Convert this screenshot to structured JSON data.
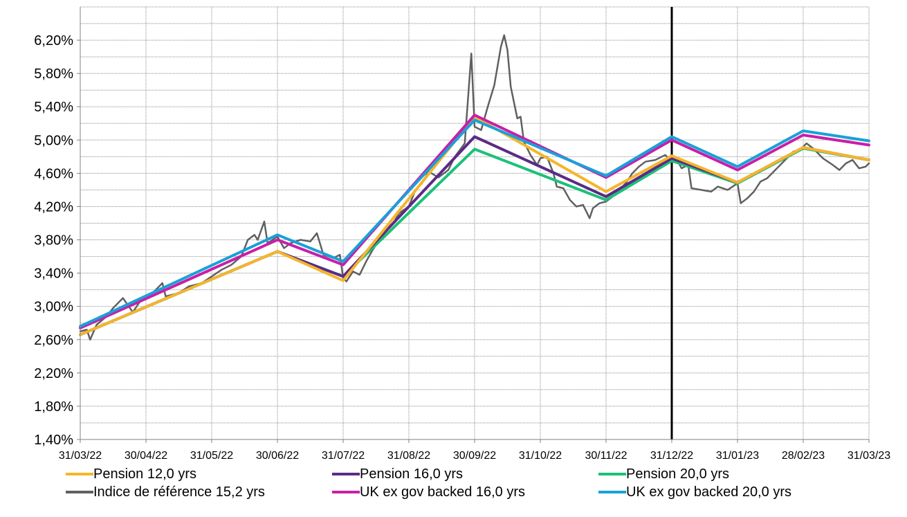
{
  "chart_data": {
    "type": "line",
    "xlabel": "",
    "ylabel": "",
    "y_axis": {
      "min": 1.4,
      "max": 6.6,
      "ticks": [
        "1,40%",
        "1,80%",
        "2,20%",
        "2,60%",
        "3,00%",
        "3,40%",
        "3,80%",
        "4,20%",
        "4,60%",
        "5,00%",
        "5,40%",
        "5,80%",
        "6,20%"
      ],
      "tick_values": [
        1.4,
        1.8,
        2.2,
        2.6,
        3.0,
        3.4,
        3.8,
        4.2,
        4.6,
        5.0,
        5.4,
        5.8,
        6.2
      ]
    },
    "x_axis": {
      "categories": [
        "31/03/22",
        "30/04/22",
        "31/05/22",
        "30/06/22",
        "31/07/22",
        "31/08/22",
        "30/09/22",
        "31/10/22",
        "30/11/22",
        "31/12/22",
        "31/01/23",
        "28/02/23",
        "31/03/23"
      ]
    },
    "grid": true,
    "vertical_marker_at": "31/12/22",
    "series": [
      {
        "name": "Pension 12,0 yrs",
        "color": "#F5B52B",
        "points": [
          [
            0,
            2.66
          ],
          [
            3,
            3.66
          ],
          [
            4,
            3.31
          ],
          [
            6,
            5.28
          ],
          [
            8,
            4.38
          ],
          [
            9,
            4.81
          ],
          [
            10,
            4.49
          ],
          [
            11,
            4.91
          ],
          [
            12,
            4.76
          ]
        ]
      },
      {
        "name": "Pension 16,0 yrs",
        "color": "#5B2A86",
        "points": [
          [
            0,
            2.66
          ],
          [
            3,
            3.66
          ],
          [
            4,
            3.36
          ],
          [
            6,
            5.04
          ],
          [
            8,
            4.32
          ],
          [
            9,
            4.78
          ],
          [
            10,
            4.49
          ],
          [
            11,
            4.91
          ],
          [
            12,
            4.76
          ]
        ]
      },
      {
        "name": "Pension 20,0 yrs",
        "color": "#1DC07A",
        "points": [
          [
            0,
            2.66
          ],
          [
            3,
            3.66
          ],
          [
            4,
            3.36
          ],
          [
            6,
            4.89
          ],
          [
            8,
            4.28
          ],
          [
            9,
            4.75
          ],
          [
            10,
            4.48
          ],
          [
            11,
            4.9
          ],
          [
            12,
            4.76
          ]
        ]
      },
      {
        "name": "Indice de référence 15,2 yrs",
        "color": "#5F6062",
        "points": [
          [
            0.0,
            2.7
          ],
          [
            0.1,
            2.72
          ],
          [
            0.15,
            2.6
          ],
          [
            0.25,
            2.78
          ],
          [
            0.4,
            2.88
          ],
          [
            0.5,
            2.98
          ],
          [
            0.65,
            3.1
          ],
          [
            0.8,
            2.93
          ],
          [
            0.9,
            3.05
          ],
          [
            1.0,
            3.12
          ],
          [
            1.1,
            3.16
          ],
          [
            1.25,
            3.28
          ],
          [
            1.3,
            3.12
          ],
          [
            1.5,
            3.16
          ],
          [
            1.65,
            3.24
          ],
          [
            1.85,
            3.28
          ],
          [
            2.0,
            3.36
          ],
          [
            2.15,
            3.44
          ],
          [
            2.3,
            3.5
          ],
          [
            2.45,
            3.6
          ],
          [
            2.55,
            3.8
          ],
          [
            2.65,
            3.86
          ],
          [
            2.7,
            3.8
          ],
          [
            2.8,
            4.02
          ],
          [
            2.85,
            3.76
          ],
          [
            3.0,
            3.84
          ],
          [
            3.1,
            3.7
          ],
          [
            3.2,
            3.76
          ],
          [
            3.35,
            3.8
          ],
          [
            3.5,
            3.78
          ],
          [
            3.6,
            3.88
          ],
          [
            3.7,
            3.62
          ],
          [
            3.85,
            3.58
          ],
          [
            3.95,
            3.62
          ],
          [
            4.0,
            3.34
          ],
          [
            4.05,
            3.3
          ],
          [
            4.15,
            3.42
          ],
          [
            4.25,
            3.38
          ],
          [
            4.35,
            3.54
          ],
          [
            4.45,
            3.68
          ],
          [
            4.55,
            3.8
          ],
          [
            4.65,
            3.9
          ],
          [
            4.75,
            3.98
          ],
          [
            4.85,
            4.12
          ],
          [
            5.0,
            4.2
          ],
          [
            5.1,
            4.4
          ],
          [
            5.2,
            4.48
          ],
          [
            5.3,
            4.62
          ],
          [
            5.45,
            4.55
          ],
          [
            5.6,
            4.64
          ],
          [
            5.7,
            4.8
          ],
          [
            5.85,
            4.96
          ],
          [
            5.95,
            6.04
          ],
          [
            6.0,
            5.16
          ],
          [
            6.1,
            5.12
          ],
          [
            6.2,
            5.4
          ],
          [
            6.3,
            5.66
          ],
          [
            6.4,
            6.12
          ],
          [
            6.45,
            6.26
          ],
          [
            6.5,
            6.08
          ],
          [
            6.55,
            5.64
          ],
          [
            6.65,
            5.26
          ],
          [
            6.7,
            5.28
          ],
          [
            6.75,
            4.98
          ],
          [
            6.85,
            4.82
          ],
          [
            6.95,
            4.7
          ],
          [
            7.0,
            4.78
          ],
          [
            7.1,
            4.8
          ],
          [
            7.2,
            4.6
          ],
          [
            7.25,
            4.44
          ],
          [
            7.35,
            4.42
          ],
          [
            7.45,
            4.28
          ],
          [
            7.55,
            4.2
          ],
          [
            7.65,
            4.22
          ],
          [
            7.75,
            4.06
          ],
          [
            7.8,
            4.18
          ],
          [
            7.9,
            4.24
          ],
          [
            8.0,
            4.26
          ],
          [
            8.1,
            4.32
          ],
          [
            8.2,
            4.4
          ],
          [
            8.3,
            4.48
          ],
          [
            8.4,
            4.6
          ],
          [
            8.5,
            4.68
          ],
          [
            8.6,
            4.74
          ],
          [
            8.75,
            4.76
          ],
          [
            8.9,
            4.82
          ],
          [
            9.0,
            4.74
          ],
          [
            9.05,
            4.8
          ],
          [
            9.15,
            4.66
          ],
          [
            9.25,
            4.7
          ],
          [
            9.3,
            4.42
          ],
          [
            9.45,
            4.4
          ],
          [
            9.6,
            4.38
          ],
          [
            9.7,
            4.44
          ],
          [
            9.85,
            4.4
          ],
          [
            10.0,
            4.48
          ],
          [
            10.05,
            4.24
          ],
          [
            10.15,
            4.3
          ],
          [
            10.25,
            4.38
          ],
          [
            10.35,
            4.5
          ],
          [
            10.45,
            4.54
          ],
          [
            10.55,
            4.62
          ],
          [
            10.65,
            4.7
          ],
          [
            10.75,
            4.78
          ],
          [
            10.85,
            4.86
          ],
          [
            10.95,
            4.88
          ],
          [
            11.05,
            4.96
          ],
          [
            11.15,
            4.9
          ],
          [
            11.3,
            4.78
          ],
          [
            11.45,
            4.7
          ],
          [
            11.55,
            4.64
          ],
          [
            11.65,
            4.72
          ],
          [
            11.75,
            4.76
          ],
          [
            11.85,
            4.66
          ],
          [
            11.95,
            4.68
          ],
          [
            12.0,
            4.72
          ]
        ]
      },
      {
        "name": "UK ex gov backed 16,0 yrs",
        "color": "#C81EA8",
        "points": [
          [
            0,
            2.74
          ],
          [
            3,
            3.8
          ],
          [
            4,
            3.5
          ],
          [
            6,
            5.3
          ],
          [
            8,
            4.55
          ],
          [
            9,
            5.0
          ],
          [
            10,
            4.64
          ],
          [
            11,
            5.06
          ],
          [
            12,
            4.94
          ]
        ]
      },
      {
        "name": "UK ex gov backed 20,0 yrs",
        "color": "#1AA0D8",
        "points": [
          [
            0,
            2.76
          ],
          [
            3,
            3.86
          ],
          [
            4,
            3.54
          ],
          [
            6,
            5.24
          ],
          [
            8,
            4.57
          ],
          [
            9,
            5.04
          ],
          [
            10,
            4.68
          ],
          [
            11,
            5.11
          ],
          [
            12,
            4.99
          ]
        ]
      }
    ]
  }
}
